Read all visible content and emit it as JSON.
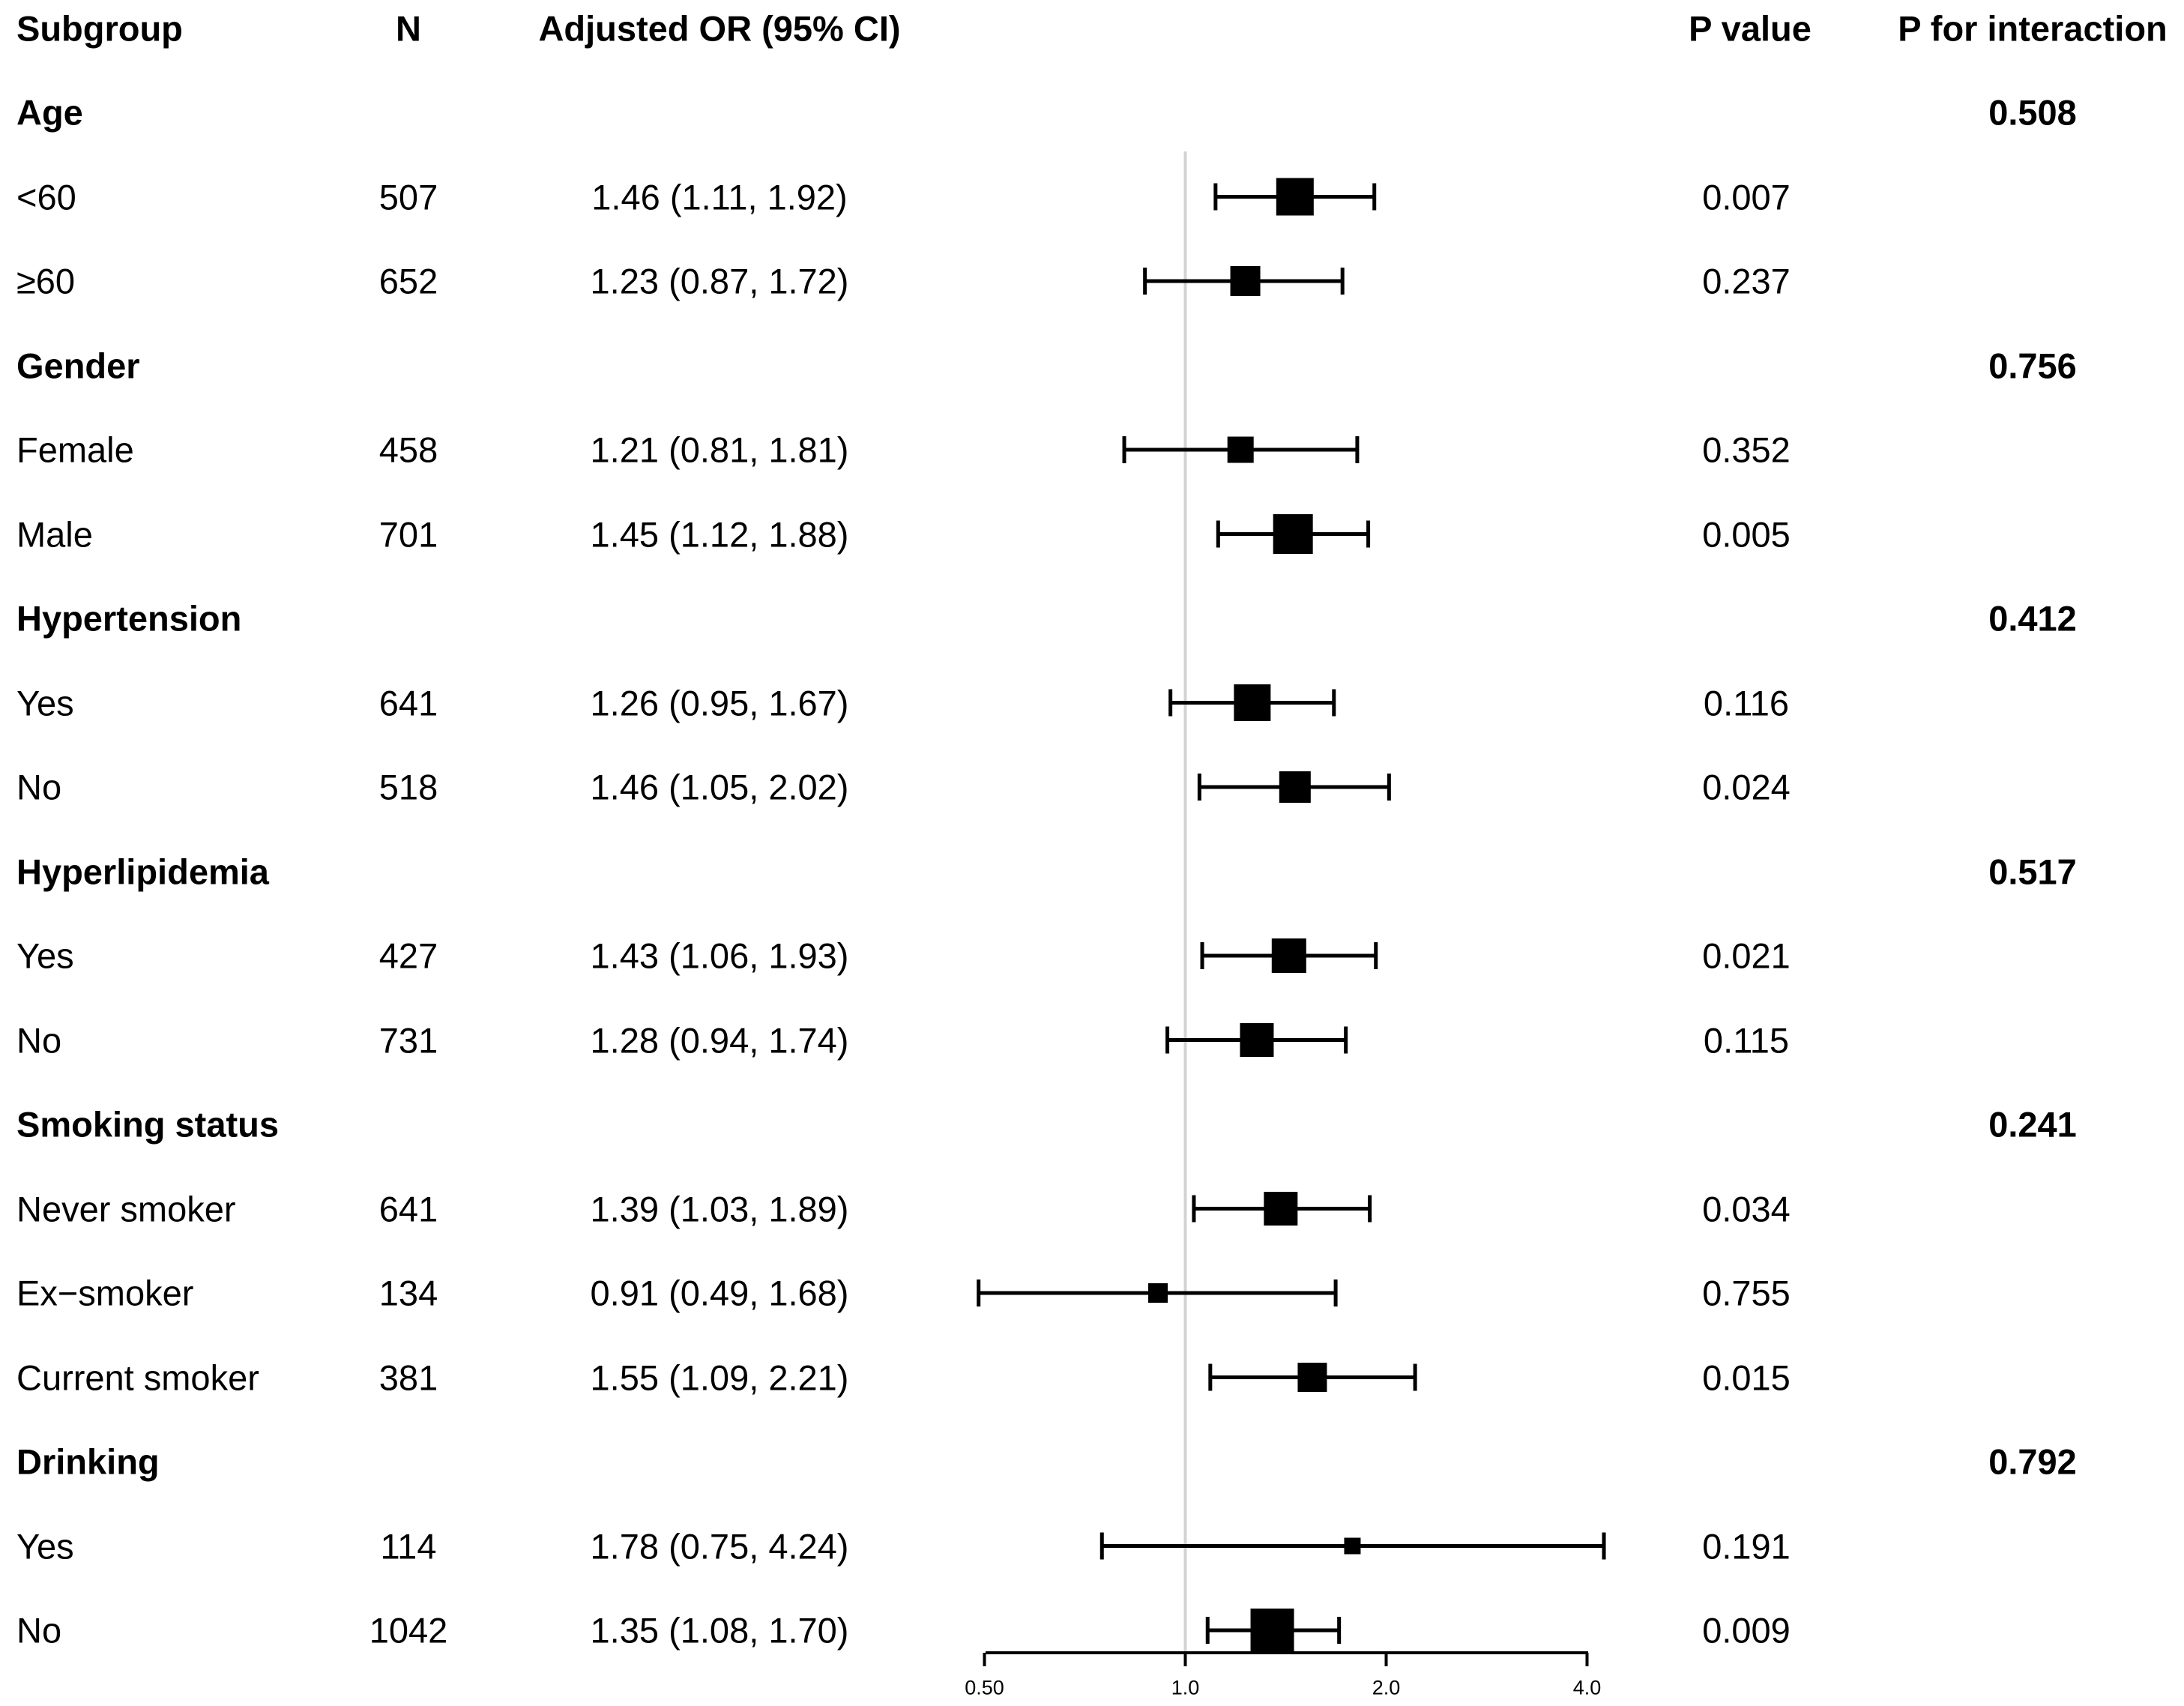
{
  "columns": {
    "subgroup": "Subgroup",
    "n": "N",
    "or_ci": "Adjusted OR (95% CI)",
    "p_value": "P value",
    "p_interaction": "P for interaction"
  },
  "colors": {
    "text": "#000000",
    "marker": "#000000",
    "ci_line": "#000000",
    "reference_line": "#d3d3d3",
    "background": "#ffffff"
  },
  "chart_data": {
    "type": "forest",
    "x_axis": {
      "scale": "log2",
      "tick_labels": [
        "0.50",
        "1.0",
        "2.0",
        "4.0"
      ],
      "tick_values": [
        0.5,
        1.0,
        2.0,
        4.0
      ],
      "range": [
        0.5,
        4.0
      ],
      "reference_value": 1.0
    },
    "rows": [
      {
        "kind": "group",
        "label": "Age",
        "p_interaction": "0.508"
      },
      {
        "kind": "item",
        "label": "<60",
        "n": "507",
        "or_ci": "1.46 (1.11, 1.92)",
        "or": 1.46,
        "lo": 1.11,
        "hi": 1.92,
        "p": "0.007",
        "size": 50
      },
      {
        "kind": "item",
        "label": "≥60",
        "n": "652",
        "or_ci": "1.23 (0.87, 1.72)",
        "or": 1.23,
        "lo": 0.87,
        "hi": 1.72,
        "p": "0.237",
        "size": 40
      },
      {
        "kind": "group",
        "label": "Gender",
        "p_interaction": "0.756"
      },
      {
        "kind": "item",
        "label": "Female",
        "n": "458",
        "or_ci": "1.21 (0.81, 1.81)",
        "or": 1.21,
        "lo": 0.81,
        "hi": 1.81,
        "p": "0.352",
        "size": 35
      },
      {
        "kind": "item",
        "label": "Male",
        "n": "701",
        "or_ci": "1.45 (1.12, 1.88)",
        "or": 1.45,
        "lo": 1.12,
        "hi": 1.88,
        "p": "0.005",
        "size": 53
      },
      {
        "kind": "group",
        "label": "Hypertension",
        "p_interaction": "0.412"
      },
      {
        "kind": "item",
        "label": "Yes",
        "n": "641",
        "or_ci": "1.26 (0.95, 1.67)",
        "or": 1.26,
        "lo": 0.95,
        "hi": 1.67,
        "p": "0.116",
        "size": 49
      },
      {
        "kind": "item",
        "label": "No",
        "n": "518",
        "or_ci": "1.46 (1.05, 2.02)",
        "or": 1.46,
        "lo": 1.05,
        "hi": 2.02,
        "p": "0.024",
        "size": 42
      },
      {
        "kind": "group",
        "label": "Hyperlipidemia",
        "p_interaction": "0.517"
      },
      {
        "kind": "item",
        "label": "Yes",
        "n": "427",
        "or_ci": "1.43 (1.06, 1.93)",
        "or": 1.43,
        "lo": 1.06,
        "hi": 1.93,
        "p": "0.021",
        "size": 46
      },
      {
        "kind": "item",
        "label": "No",
        "n": "731",
        "or_ci": "1.28 (0.94, 1.74)",
        "or": 1.28,
        "lo": 0.94,
        "hi": 1.74,
        "p": "0.115",
        "size": 45
      },
      {
        "kind": "group",
        "label": "Smoking status",
        "p_interaction": "0.241"
      },
      {
        "kind": "item",
        "label": "Never smoker",
        "n": "641",
        "or_ci": "1.39 (1.03, 1.89)",
        "or": 1.39,
        "lo": 1.03,
        "hi": 1.89,
        "p": "0.034",
        "size": 45
      },
      {
        "kind": "item",
        "label": "Ex−smoker",
        "n": "134",
        "or_ci": "0.91 (0.49, 1.68)",
        "or": 0.91,
        "lo": 0.49,
        "hi": 1.68,
        "p": "0.755",
        "size": 26
      },
      {
        "kind": "item",
        "label": "Current smoker",
        "n": "381",
        "or_ci": "1.55 (1.09, 2.21)",
        "or": 1.55,
        "lo": 1.09,
        "hi": 2.21,
        "p": "0.015",
        "size": 39
      },
      {
        "kind": "group",
        "label": "Drinking",
        "p_interaction": "0.792"
      },
      {
        "kind": "item",
        "label": "Yes",
        "n": "114",
        "or_ci": "1.78 (0.75, 4.24)",
        "or": 1.78,
        "lo": 0.75,
        "hi": 4.24,
        "p": "0.191",
        "size": 22
      },
      {
        "kind": "item",
        "label": "No",
        "n": "1042",
        "or_ci": "1.35 (1.08, 1.70)",
        "or": 1.35,
        "lo": 1.08,
        "hi": 1.7,
        "p": "0.009",
        "size": 58
      }
    ]
  }
}
